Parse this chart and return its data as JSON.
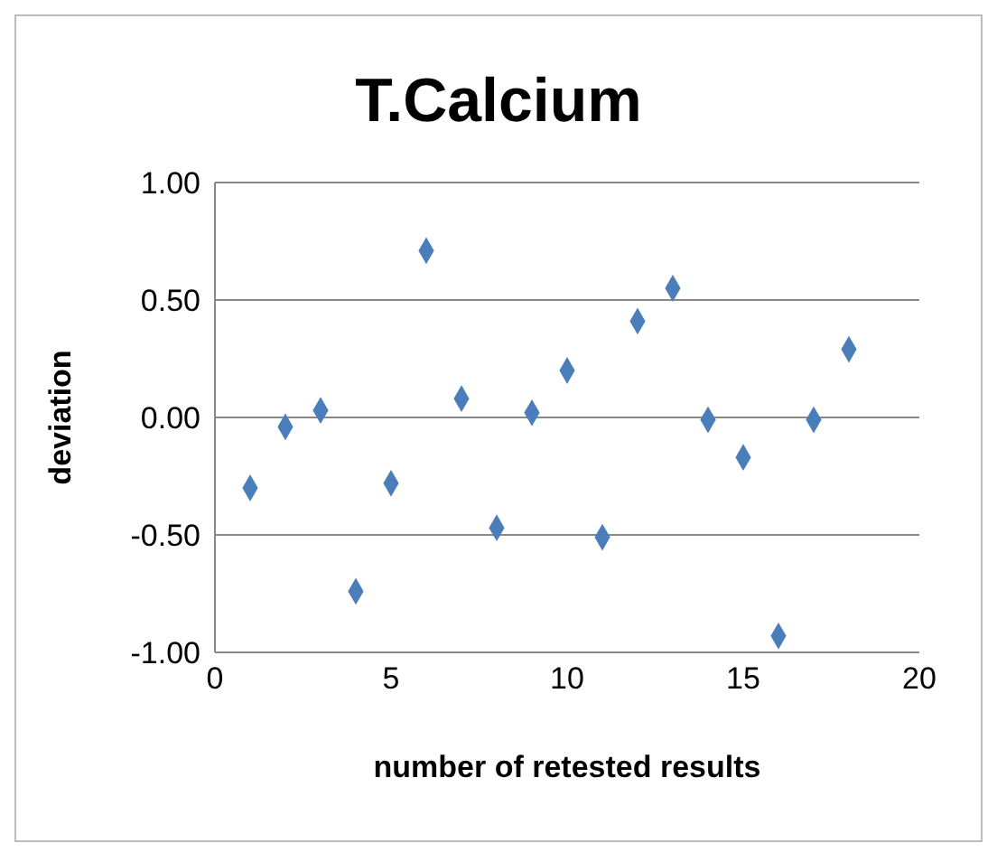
{
  "chart_data": {
    "type": "scatter",
    "title": "T.Calcium",
    "xlabel": "number of retested results",
    "ylabel": "deviation",
    "x": [
      1,
      2,
      3,
      4,
      5,
      6,
      7,
      8,
      9,
      10,
      11,
      12,
      13,
      14,
      15,
      16,
      17,
      18
    ],
    "series": [
      {
        "color": "#4a7ebb",
        "values": [
          -0.3,
          -0.04,
          0.03,
          -0.74,
          -0.28,
          0.71,
          0.08,
          -0.47,
          0.02,
          0.2,
          -0.51,
          0.41,
          0.55,
          -0.01,
          -0.17,
          -0.93,
          -0.01,
          0.29
        ]
      }
    ],
    "xlim": [
      0,
      20
    ],
    "xticks": [
      0,
      5,
      10,
      15,
      20
    ],
    "ylim": [
      -1,
      1
    ],
    "yticks": [
      {
        "value": -1,
        "label": "-1.00"
      },
      {
        "value": -0.5,
        "label": "-0.50"
      },
      {
        "value": 0,
        "label": "0.00"
      },
      {
        "value": 0.5,
        "label": "0.50"
      },
      {
        "value": 1,
        "label": "1.00"
      }
    ],
    "grid": "y",
    "marker": "diamond",
    "legend": false
  }
}
